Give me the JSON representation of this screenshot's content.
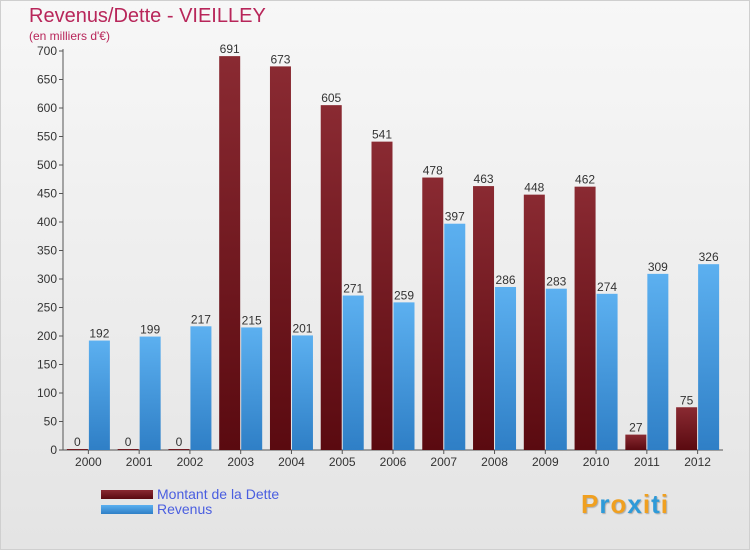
{
  "chart_data": {
    "type": "bar",
    "title": "Revenus/Dette - VIEILLEY",
    "subtitle": "(en milliers d'€)",
    "categories": [
      "2000",
      "2001",
      "2002",
      "2003",
      "2004",
      "2005",
      "2006",
      "2007",
      "2008",
      "2009",
      "2010",
      "2011",
      "2012"
    ],
    "series": [
      {
        "name": "Montant de la Dette",
        "color": "#7a1e26",
        "values": [
          0,
          0,
          0,
          691,
          673,
          605,
          541,
          478,
          463,
          448,
          462,
          27,
          75
        ]
      },
      {
        "name": "Revenus",
        "color": "#4da3e8",
        "values": [
          192,
          199,
          217,
          215,
          201,
          271,
          259,
          397,
          286,
          283,
          274,
          309,
          326
        ]
      }
    ],
    "ylim": [
      0,
      700
    ],
    "yticks": [
      0,
      50,
      100,
      150,
      200,
      250,
      300,
      350,
      400,
      450,
      500,
      550,
      600,
      650,
      700
    ],
    "grid": false,
    "legend_position": "bottom-left"
  },
  "watermark": {
    "letters": [
      "P",
      "r",
      "o",
      "x",
      "i",
      "t",
      "i"
    ],
    "colors": [
      "#f0a020",
      "#2e9ad8",
      "#f0a020",
      "#2e9ad8",
      "#f0a020",
      "#2e9ad8",
      "#f0a020"
    ]
  }
}
